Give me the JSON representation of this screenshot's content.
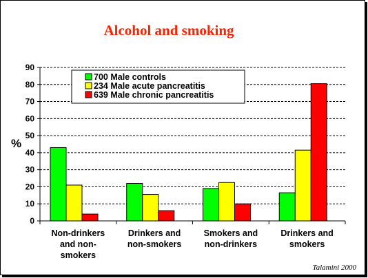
{
  "chart_data": {
    "type": "bar",
    "title": "Alcohol and smoking",
    "ylabel": "%",
    "xlabel": "",
    "ylim": [
      0,
      90
    ],
    "yticks": [
      0,
      10,
      20,
      30,
      40,
      50,
      60,
      70,
      80,
      90
    ],
    "grid": "horizontal dashed",
    "legend_position": "top-left",
    "categories": [
      [
        "Non-drinkers",
        "and non-",
        "smokers"
      ],
      [
        "Drinkers and",
        "non-smokers"
      ],
      [
        "Smokers and",
        "non-drinkers"
      ],
      [
        "Drinkers and",
        "smokers"
      ]
    ],
    "series": [
      {
        "name": "700 Male controls",
        "color": "#00ff00",
        "values": [
          43,
          22,
          19,
          16.5
        ]
      },
      {
        "name": "234 Male acute pancreatitis",
        "color": "#ffff00",
        "values": [
          21,
          15.5,
          22.5,
          41.5
        ]
      },
      {
        "name": "639 Male chronic pancreatitis",
        "color": "#ff0000",
        "values": [
          4,
          6,
          10,
          80.5
        ]
      }
    ],
    "source": "Talamini 2000",
    "title_color": "#ff2200"
  }
}
